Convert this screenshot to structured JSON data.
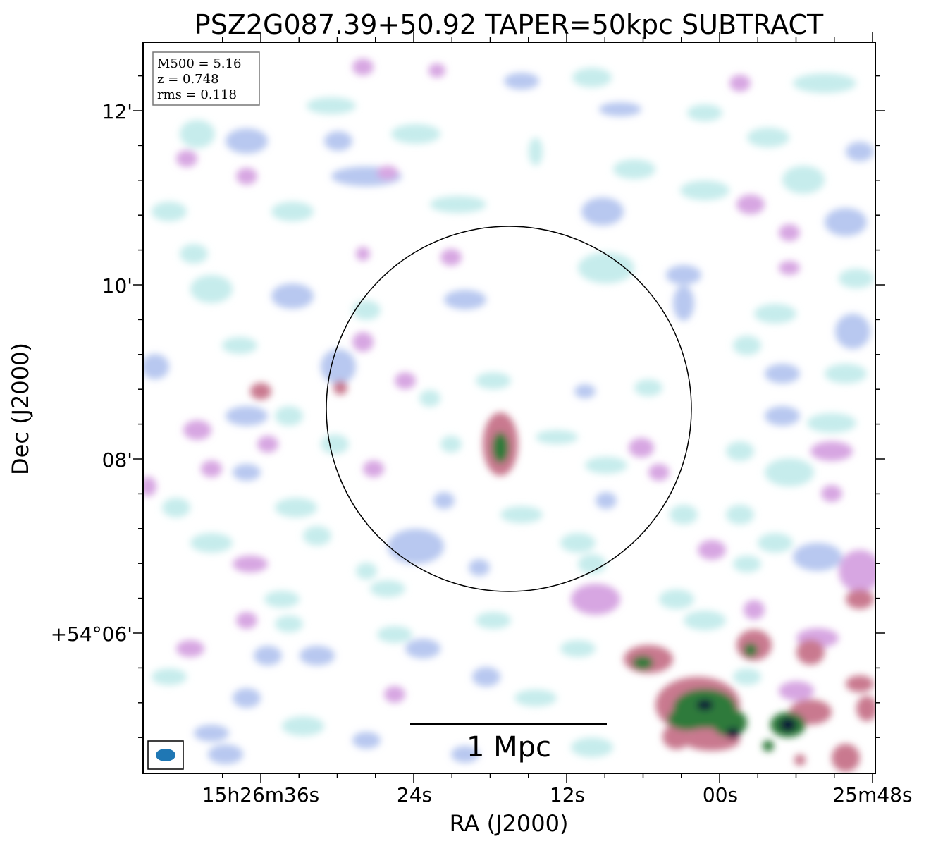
{
  "chart_data": {
    "type": "heatmap",
    "title": "PSZ2G087.39+50.92 TAPER=50kpc SUBTRACT",
    "xlabel": "RA (J2000)",
    "ylabel": "Dec (J2000)",
    "x_ticks": [
      "15h26m36s",
      "24s",
      "12s",
      "00s",
      "25m48s"
    ],
    "y_ticks": [
      "12'",
      "10'",
      "08'",
      "+54°06'"
    ],
    "info_box": {
      "line1": "M500 = 5.16",
      "line2": "z = 0.748",
      "line3": "rms = 0.118"
    },
    "scalebar_label": "1 Mpc",
    "colormap": [
      "#ffffff",
      "#c6ecec",
      "#b8c8f0",
      "#d7a6e2",
      "#c9798f",
      "#2f7a3a",
      "#0b1838"
    ],
    "grid": false,
    "legend": "none",
    "beam_color": "#1f77b4",
    "circle_color": "#000000"
  }
}
